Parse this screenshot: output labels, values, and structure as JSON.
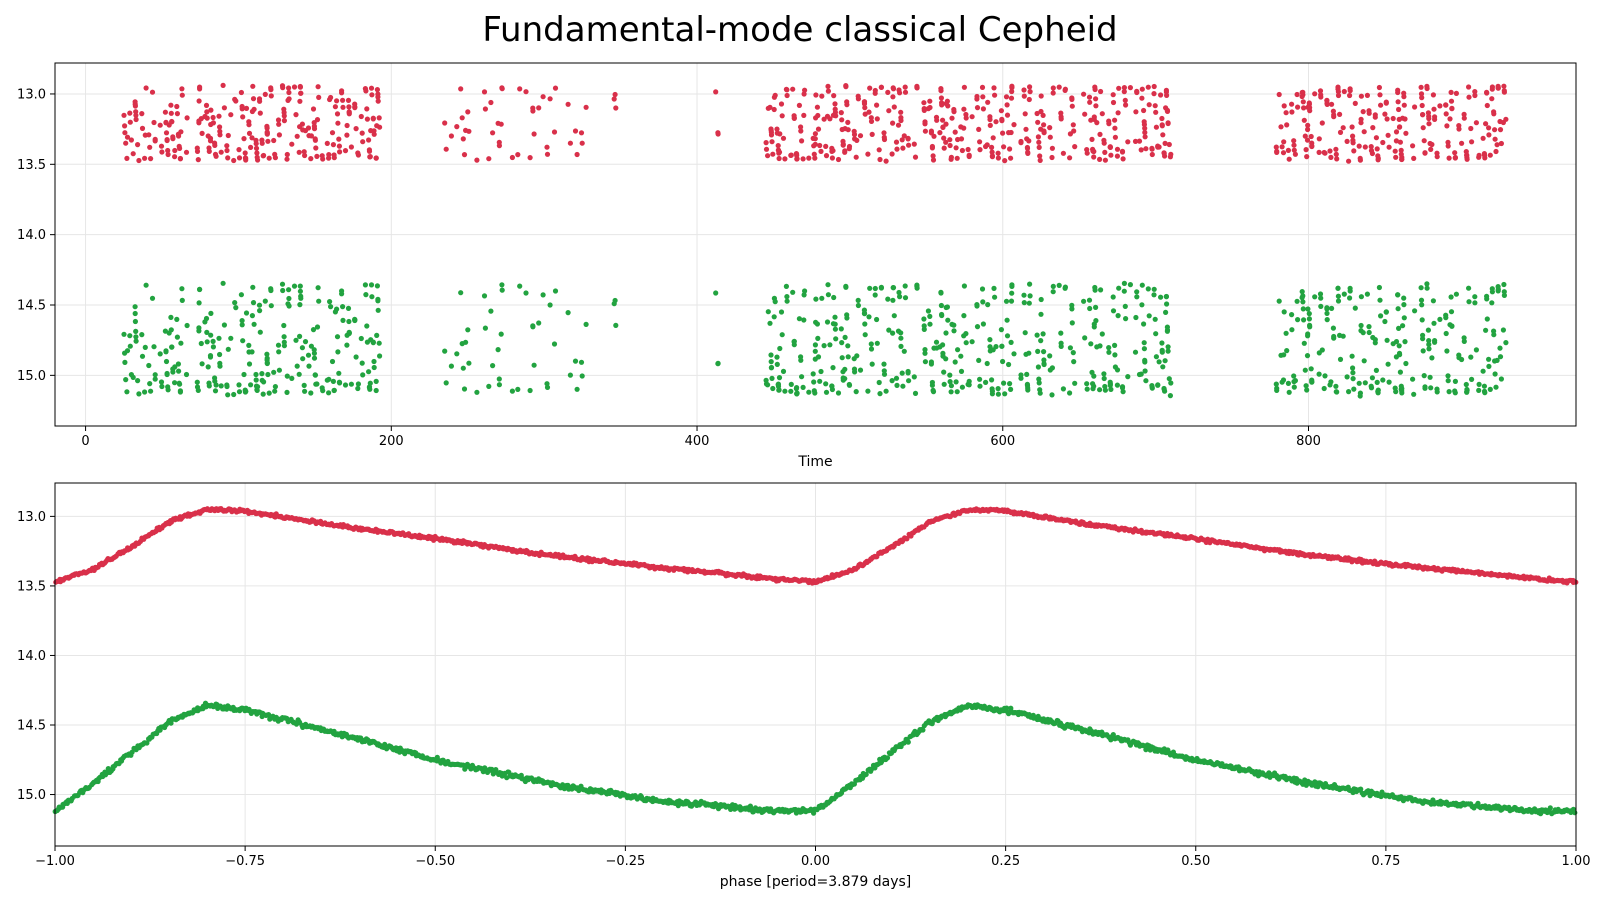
{
  "title": "Fundamental-mode classical Cepheid",
  "colors": {
    "series_a": "#d9304a",
    "series_b": "#22a340",
    "grid": "#e6e6e6"
  },
  "chart_data": [
    {
      "type": "scatter",
      "title": "",
      "xlabel": "Time",
      "ylabel": "",
      "xlim": [
        -20,
        975
      ],
      "ylim": [
        15.36,
        12.78
      ],
      "y_inverted": true,
      "xticks": [
        0,
        200,
        400,
        600,
        800
      ],
      "xtick_labels": [
        "0",
        "200",
        "400",
        "600",
        "800"
      ],
      "yticks": [
        13.0,
        13.5,
        14.0,
        14.5,
        15.0
      ],
      "ytick_labels": [
        "13.0",
        "13.5",
        "14.0",
        "14.5",
        "15.0"
      ],
      "grid": true,
      "legend": "none",
      "observing_seasons": [
        {
          "start": 25,
          "end": 195,
          "dense": true
        },
        {
          "start": 230,
          "end": 330,
          "dense": false
        },
        {
          "start": 345,
          "end": 347,
          "dense": false
        },
        {
          "start": 412,
          "end": 414,
          "dense": false
        },
        {
          "start": 445,
          "end": 710,
          "dense": true
        },
        {
          "start": 778,
          "end": 930,
          "dense": true
        }
      ],
      "series": [
        {
          "color": "#d9304a",
          "mag_range": [
            12.93,
            13.52
          ]
        },
        {
          "color": "#22a340",
          "mag_range": [
            14.33,
            15.22
          ]
        }
      ]
    },
    {
      "type": "scatter",
      "title": "",
      "xlabel": "phase [period=3.879 days]",
      "ylabel": "",
      "xlim": [
        -1.0,
        1.0
      ],
      "ylim": [
        15.37,
        12.76
      ],
      "y_inverted": true,
      "xticks": [
        -1.0,
        -0.75,
        -0.5,
        -0.25,
        0.0,
        0.25,
        0.5,
        0.75,
        1.0
      ],
      "xtick_labels": [
        "−1.00",
        "−0.75",
        "−0.50",
        "−0.25",
        "0.00",
        "0.25",
        "0.50",
        "0.75",
        "1.00"
      ],
      "yticks": [
        13.0,
        13.5,
        14.0,
        14.5,
        15.0
      ],
      "ytick_labels": [
        "13.0",
        "13.5",
        "14.0",
        "14.5",
        "15.0"
      ],
      "grid": true,
      "legend": "none",
      "series": [
        {
          "color": "#d9304a",
          "phase_profile": [
            [
              0.0,
              13.47
            ],
            [
              0.05,
              13.38
            ],
            [
              0.1,
              13.22
            ],
            [
              0.15,
              13.04
            ],
            [
              0.2,
              12.95
            ],
            [
              0.25,
              12.96
            ],
            [
              0.35,
              13.05
            ],
            [
              0.5,
              13.16
            ],
            [
              0.65,
              13.28
            ],
            [
              0.8,
              13.37
            ],
            [
              0.95,
              13.45
            ],
            [
              1.0,
              13.47
            ]
          ]
        },
        {
          "color": "#22a340",
          "phase_profile": [
            [
              0.0,
              15.12
            ],
            [
              0.05,
              14.92
            ],
            [
              0.1,
              14.7
            ],
            [
              0.15,
              14.48
            ],
            [
              0.2,
              14.36
            ],
            [
              0.25,
              14.39
            ],
            [
              0.35,
              14.53
            ],
            [
              0.5,
              14.75
            ],
            [
              0.65,
              14.92
            ],
            [
              0.8,
              15.05
            ],
            [
              0.95,
              15.12
            ],
            [
              1.0,
              15.12
            ]
          ]
        }
      ]
    }
  ]
}
